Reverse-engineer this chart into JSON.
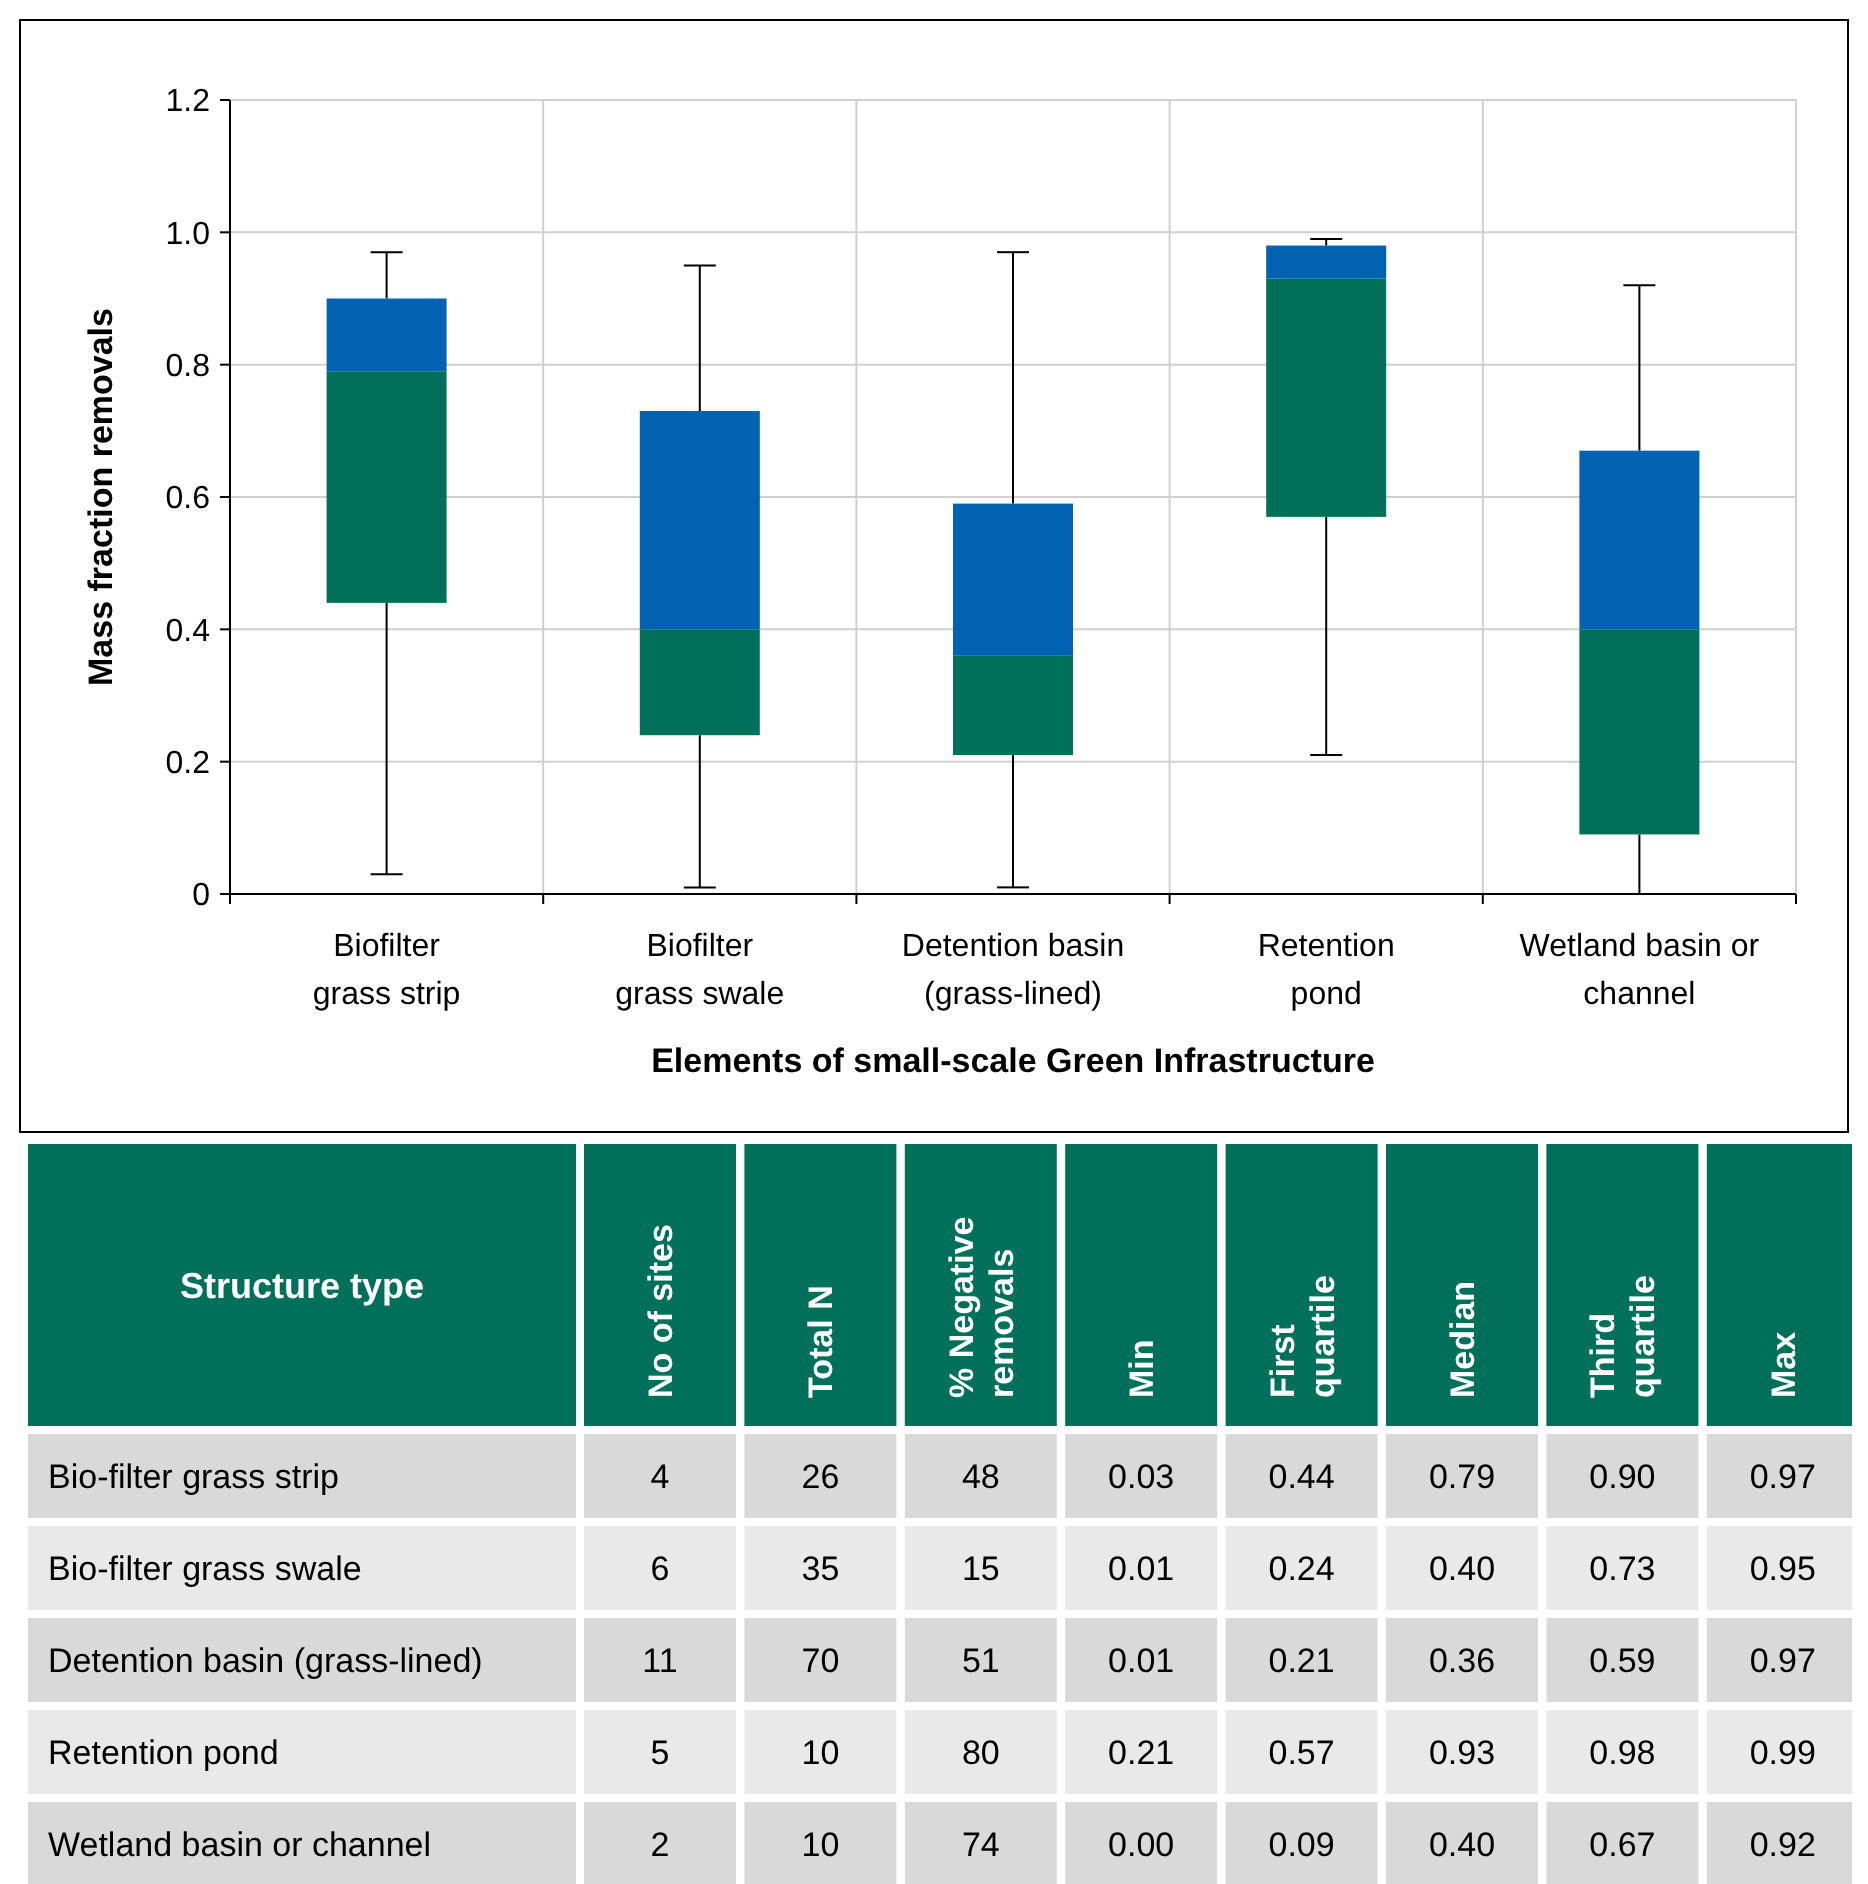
{
  "chart_data": [
    {
      "type": "box",
      "xlabel": "Elements of small-scale Green Infrastructure",
      "ylabel": "Mass fraction removals",
      "categories": [
        "Biofilter\ngrass strip",
        "Biofilter\ngrass swale",
        "Detention basin\n(grass-lined)",
        "Retention\npond",
        "Wetland basin or\nchannel"
      ],
      "series": [
        {
          "color": "#00705a",
          "boxes": [
            {
              "low": 0.03,
              "q1": 0.44,
              "median": 0.79,
              "q3": 0.9,
              "high": 0.97
            },
            {
              "low": 0.01,
              "q1": 0.24,
              "median": 0.4,
              "q3": 0.73,
              "high": 0.95
            },
            {
              "low": 0.01,
              "q1": 0.21,
              "median": 0.36,
              "q3": 0.59,
              "high": 0.97
            },
            {
              "low": 0.21,
              "q1": 0.57,
              "median": 0.93,
              "q3": 0.98,
              "high": 0.99
            },
            {
              "low": 0.0,
              "q1": 0.09,
              "median": 0.4,
              "q3": 0.67,
              "high": 0.92
            }
          ]
        }
      ],
      "ylim": [
        0,
        1.2
      ],
      "yticks": [
        0,
        {
          "value": 0.2,
          "label": "0.2"
        },
        {
          "value": 0.4,
          "label": "0.4"
        },
        {
          "value": 0.6,
          "label": "0.6"
        },
        {
          "value": 0.8,
          "label": "0.8"
        },
        {
          "value": 1,
          "label": "1.0"
        },
        {
          "value": 1.2,
          "label": "1.2"
        }
      ],
      "grid": true
    },
    {
      "type": "other",
      "xlabel": "Structure type",
      "data_labels": true,
      "categories": [
        "Bio-filter grass strip",
        "Bio-filter grass swale",
        "Detention basin (grass-lined)",
        "Retention pond",
        "Wetland basin or channel"
      ],
      "series": [
        {
          "name": "No of sites",
          "colors": [
            "#d9d9d9",
            "#e9e9e9",
            "#d9d9d9",
            "#e9e9e9",
            "#d9d9d9"
          ],
          "values": [
            4,
            6,
            11,
            5,
            2
          ]
        },
        {
          "name": "Total N",
          "colors": [
            "#d9d9d9",
            "#e9e9e9",
            "#d9d9d9",
            "#e9e9e9",
            "#d9d9d9"
          ],
          "values": [
            26,
            35,
            70,
            10,
            10
          ]
        },
        {
          "name": "% Negative\nremovals",
          "colors": [
            "#d9d9d9",
            "#e9e9e9",
            "#d9d9d9",
            "#e9e9e9",
            "#d9d9d9"
          ],
          "values": [
            48,
            15,
            51,
            80,
            74
          ]
        },
        {
          "name": "Min",
          "colors": [
            "#d9d9d9",
            "#e9e9e9",
            "#d9d9d9",
            "#e9e9e9",
            "#d9d9d9"
          ],
          "values": [
            0.03,
            0.01,
            0.01,
            0.21,
            0
          ],
          "value_labels": [
            "0.03",
            "0.01",
            "0.01",
            "0.21",
            "0.00"
          ]
        },
        {
          "name": "First\nquartile",
          "colors": [
            "#d9d9d9",
            "#e9e9e9",
            "#d9d9d9",
            "#e9e9e9",
            "#d9d9d9"
          ],
          "values": [
            0.44,
            0.24,
            0.21,
            0.57,
            0.09
          ]
        },
        {
          "name": "Median",
          "colors": [
            "#d9d9d9",
            "#e9e9e9",
            "#d9d9d9",
            "#e9e9e9",
            "#d9d9d9"
          ],
          "values": [
            0.79,
            0.4,
            0.36,
            0.93,
            0.4
          ],
          "value_labels": [
            "0.79",
            "0.40",
            "0.36",
            "0.93",
            "0.40"
          ]
        },
        {
          "name": "Third\nquartile",
          "colors": [
            "#d9d9d9",
            "#e9e9e9",
            "#d9d9d9",
            "#e9e9e9",
            "#d9d9d9"
          ],
          "values": [
            0.9,
            0.73,
            0.59,
            0.98,
            0.67
          ],
          "value_labels": [
            "0.90",
            "0.73",
            "0.59",
            "0.98",
            "0.67"
          ]
        },
        {
          "name": "Max",
          "colors": [
            "#d9d9d9",
            "#e9e9e9",
            "#d9d9d9",
            "#e9e9e9",
            "#d9d9d9"
          ],
          "values": [
            0.97,
            0.95,
            0.97,
            0.99,
            0.92
          ]
        }
      ]
    }
  ]
}
